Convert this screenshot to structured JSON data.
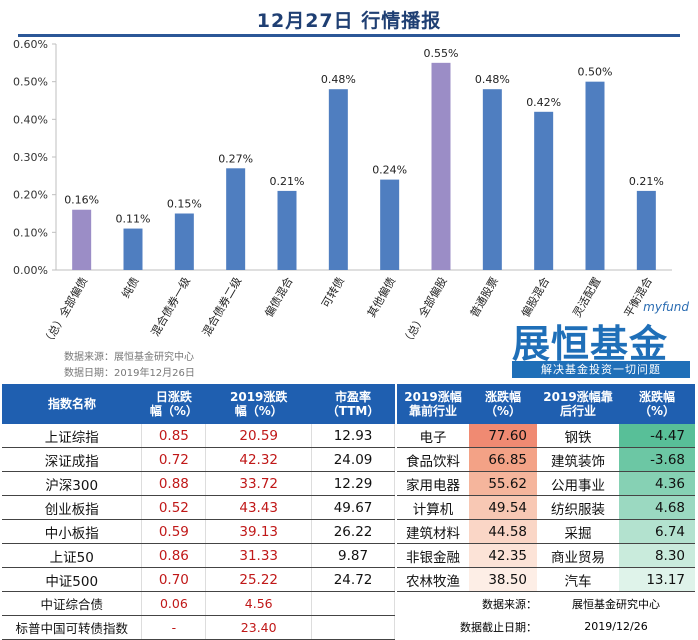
{
  "page": {
    "title": "12月27日  行情播报",
    "source_note": "数据来源：展恒基金研究中心",
    "date_note": "数据日期：2019年12月26日"
  },
  "logo": {
    "myfund": "myfund",
    "main": "展恒基金",
    "slogan": "解决基金投资一切问题"
  },
  "colors": {
    "blue": "#4f7ec0",
    "purple": "#9b8dc6",
    "header": "#1f5fb0",
    "value_red": "#c01818"
  },
  "chart_data": {
    "type": "bar",
    "categories": [
      "（总）全部偏债",
      "纯债",
      "混合债券一级",
      "混合债券二级",
      "偏债混合",
      "可转债",
      "其他偏债",
      "（总）全部偏股",
      "普通股票",
      "偏股混合",
      "灵活配置",
      "平衡混合"
    ],
    "values": [
      0.16,
      0.11,
      0.15,
      0.27,
      0.21,
      0.48,
      0.24,
      0.55,
      0.48,
      0.42,
      0.5,
      0.21
    ],
    "labels": [
      "0.16%",
      "0.11%",
      "0.15%",
      "0.27%",
      "0.21%",
      "0.48%",
      "0.24%",
      "0.55%",
      "0.48%",
      "0.42%",
      "0.50%",
      "0.21%"
    ],
    "highlight": [
      true,
      false,
      false,
      false,
      false,
      false,
      false,
      true,
      false,
      false,
      false,
      false
    ],
    "yticks": [
      "0.00%",
      "0.10%",
      "0.20%",
      "0.30%",
      "0.40%",
      "0.50%",
      "0.60%"
    ],
    "ylim": [
      0,
      0.6
    ],
    "title": "",
    "xlabel": "",
    "ylabel": "",
    "grid": false
  },
  "left_table": {
    "headers": [
      "指数名称",
      "日涨跌\n幅（%）",
      "2019涨跌\n幅（%）",
      "市盈率\n（TTM）"
    ],
    "rows": [
      [
        "上证综指",
        "0.85",
        "20.59",
        "12.93"
      ],
      [
        "深证成指",
        "0.72",
        "42.32",
        "24.09"
      ],
      [
        "沪深300",
        "0.88",
        "33.72",
        "12.29"
      ],
      [
        "创业板指",
        "0.52",
        "43.43",
        "49.67"
      ],
      [
        "中小板指",
        "0.59",
        "39.13",
        "26.22"
      ],
      [
        "上证50",
        "0.86",
        "31.33",
        "9.87"
      ],
      [
        "中证500",
        "0.70",
        "25.22",
        "24.72"
      ],
      [
        "中证综合债",
        "0.06",
        "4.56",
        ""
      ],
      [
        "标普中国可转债指数",
        "-",
        "23.40",
        ""
      ]
    ]
  },
  "right_table": {
    "headers": [
      "2019涨幅\n靠前行业",
      "涨跌幅\n（%）",
      "2019涨幅靠\n后行业",
      "涨跌幅\n（%）"
    ],
    "rows": [
      [
        "电子",
        "77.60",
        "钢铁",
        "-4.47"
      ],
      [
        "食品饮料",
        "66.85",
        "建筑装饰",
        "-3.68"
      ],
      [
        "家用电器",
        "55.62",
        "公用事业",
        "4.36"
      ],
      [
        "计算机",
        "49.54",
        "纺织服装",
        "4.68"
      ],
      [
        "建筑材料",
        "44.58",
        "采掘",
        "6.74"
      ],
      [
        "非银金融",
        "42.35",
        "商业贸易",
        "8.30"
      ],
      [
        "农林牧渔",
        "38.50",
        "汽车",
        "13.17"
      ]
    ],
    "top_colors": [
      "#f08a72",
      "#f3a286",
      "#f5b59c",
      "#f8c8b4",
      "#fad6c6",
      "#fce3d7",
      "#fdeee6"
    ],
    "bottom_colors": [
      "#58bf98",
      "#6cc7a4",
      "#86d1b4",
      "#9bd9c1",
      "#b3e2cf",
      "#c9ebdc",
      "#dff3ea"
    ],
    "footer": [
      [
        "数据来源：",
        "展恒基金研究中心"
      ],
      [
        "数据截止日期：",
        "2019/12/26"
      ]
    ]
  }
}
